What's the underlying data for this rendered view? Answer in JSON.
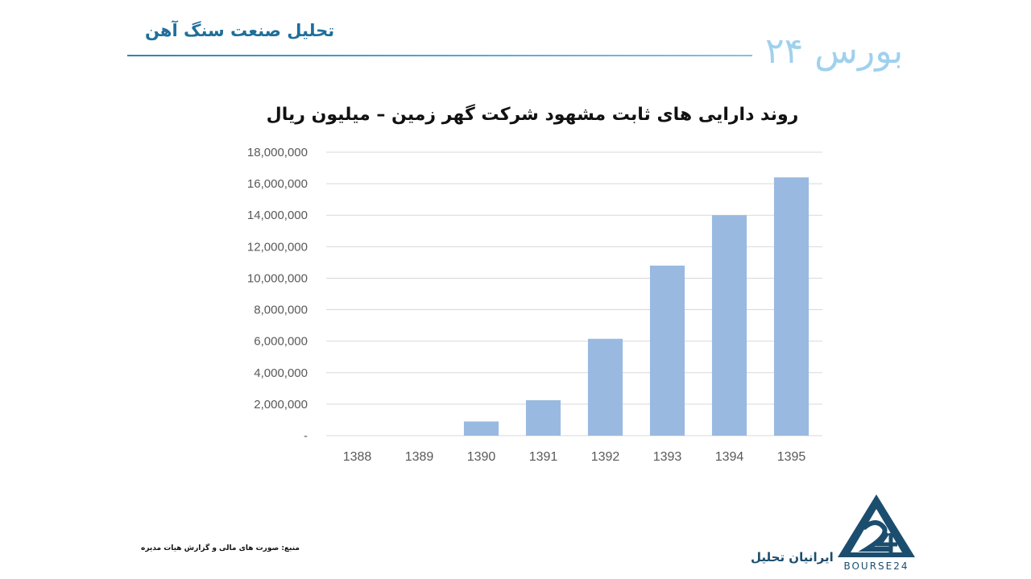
{
  "header": {
    "title": "تحلیل صنعت سنگ آهن",
    "brand_logo_text": "بورس ۲۴"
  },
  "chart_data": {
    "type": "bar",
    "title": "روند دارایی های ثابت مشهود شرکت گهر زمین – میلیون ریال",
    "categories": [
      "1388",
      "1389",
      "1390",
      "1391",
      "1392",
      "1393",
      "1394",
      "1395"
    ],
    "values": [
      0,
      0,
      900000,
      2250000,
      6150000,
      10800000,
      14000000,
      16400000
    ],
    "ylim": [
      0,
      18000000
    ],
    "yticks": [
      0,
      2000000,
      4000000,
      6000000,
      8000000,
      10000000,
      12000000,
      14000000,
      16000000,
      18000000
    ],
    "ytick_labels": [
      "-",
      "2,000,000",
      "4,000,000",
      "6,000,000",
      "8,000,000",
      "10,000,000",
      "12,000,000",
      "14,000,000",
      "16,000,000",
      "18,000,000"
    ],
    "grid": true,
    "bar_color": "#9ab9e0",
    "grid_color": "#d9d9d9",
    "tick_color": "#595959"
  },
  "footer": {
    "source_note": "منبع: صورت های مالی و گزارش هیات مدیره",
    "publisher": "ایرانیان تحلیل",
    "logo_word": "BOURSE24"
  },
  "colors": {
    "accent": "#1f6f9a",
    "logo_light": "#9fd1ee",
    "logo_dark": "#1b4d6e"
  }
}
